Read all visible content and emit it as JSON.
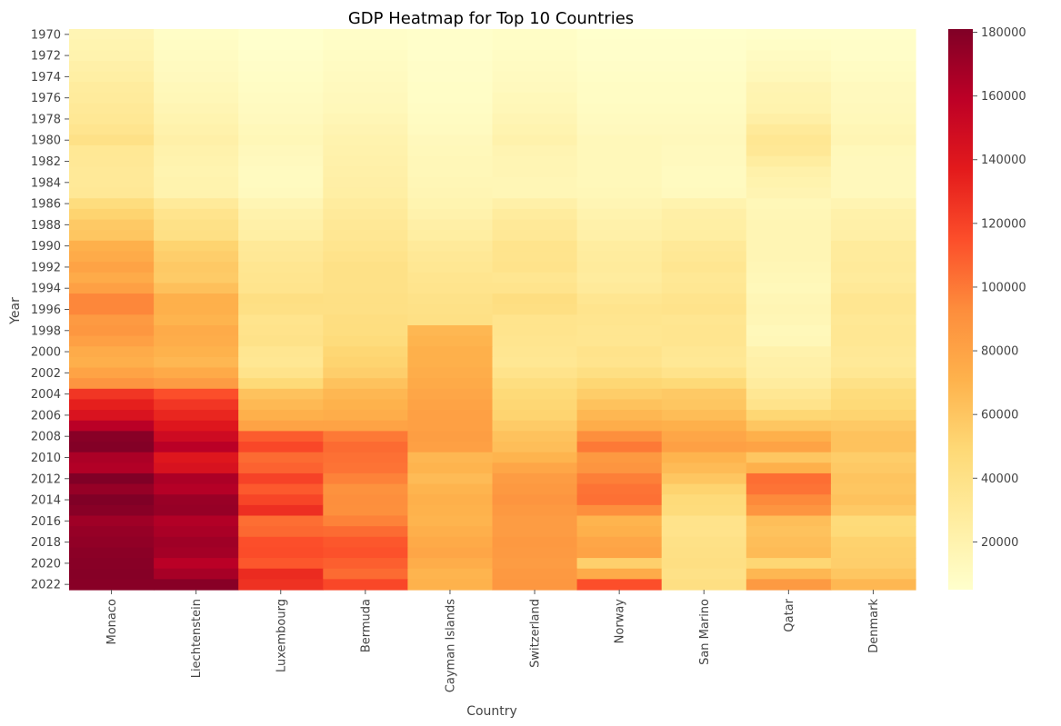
{
  "chart_data": {
    "type": "heatmap",
    "title": "GDP Heatmap for Top 10 Countries",
    "xlabel": "Country",
    "ylabel": "Year",
    "x": [
      "Monaco",
      "Liechtenstein",
      "Luxembourg",
      "Bermuda",
      "Cayman Islands",
      "Switzerland",
      "Norway",
      "San Marino",
      "Qatar",
      "Denmark"
    ],
    "y": [
      1970,
      1971,
      1972,
      1973,
      1974,
      1975,
      1976,
      1977,
      1978,
      1979,
      1980,
      1981,
      1982,
      1983,
      1984,
      1985,
      1986,
      1987,
      1988,
      1989,
      1990,
      1991,
      1992,
      1993,
      1994,
      1995,
      1996,
      1997,
      1998,
      1999,
      2000,
      2001,
      2002,
      2003,
      2004,
      2005,
      2006,
      2007,
      2008,
      2009,
      2010,
      2011,
      2012,
      2013,
      2014,
      2015,
      2016,
      2017,
      2018,
      2019,
      2020,
      2021,
      2022
    ],
    "y_tick_labels": [
      "1970",
      "1972",
      "1974",
      "1976",
      "1978",
      "1980",
      "1982",
      "1984",
      "1986",
      "1988",
      "1990",
      "1992",
      "1994",
      "1996",
      "1998",
      "2000",
      "2002",
      "2004",
      "2006",
      "2008",
      "2010",
      "2012",
      "2014",
      "2016",
      "2018",
      "2020",
      "2022"
    ],
    "values": [
      [
        17000,
        8000,
        5000,
        7000,
        6000,
        8000,
        5000,
        5000,
        6000,
        6000
      ],
      [
        19000,
        9000,
        5000,
        8000,
        6000,
        8000,
        6000,
        6000,
        8000,
        7000
      ],
      [
        20000,
        10000,
        6000,
        9000,
        6000,
        9000,
        6000,
        6000,
        10000,
        7000
      ],
      [
        23000,
        11000,
        7000,
        10000,
        7000,
        10000,
        7000,
        7000,
        12000,
        9000
      ],
      [
        25000,
        12000,
        8000,
        11000,
        7000,
        11000,
        8000,
        8000,
        14000,
        10000
      ],
      [
        28000,
        14000,
        9000,
        12000,
        8000,
        12000,
        9000,
        9000,
        18000,
        12000
      ],
      [
        29000,
        15000,
        10000,
        13000,
        8000,
        14000,
        9000,
        9000,
        19000,
        12000
      ],
      [
        31000,
        17000,
        11000,
        14000,
        9000,
        15000,
        10000,
        10000,
        20000,
        13000
      ],
      [
        33000,
        19000,
        12000,
        16000,
        10000,
        17000,
        11000,
        11000,
        24000,
        14000
      ],
      [
        36000,
        21000,
        14000,
        18000,
        11000,
        19000,
        12000,
        12000,
        30000,
        16000
      ],
      [
        40000,
        23000,
        15000,
        20000,
        13000,
        21000,
        14000,
        13000,
        34000,
        17000
      ],
      [
        33000,
        21000,
        13000,
        21000,
        14000,
        18000,
        14000,
        12000,
        32000,
        14000
      ],
      [
        32000,
        20000,
        12000,
        22000,
        15000,
        17000,
        14000,
        12000,
        27000,
        13000
      ],
      [
        31000,
        19000,
        11000,
        23000,
        15000,
        17000,
        14000,
        11000,
        22000,
        13000
      ],
      [
        31000,
        20000,
        11000,
        24000,
        16000,
        16000,
        14000,
        11000,
        20000,
        13000
      ],
      [
        32000,
        20000,
        12000,
        25000,
        17000,
        16000,
        15000,
        12000,
        18000,
        13000
      ],
      [
        45000,
        30000,
        17000,
        28000,
        19000,
        23000,
        17000,
        20000,
        15000,
        18000
      ],
      [
        52000,
        37000,
        21000,
        30000,
        21000,
        28000,
        20000,
        24000,
        16000,
        22000
      ],
      [
        58000,
        40000,
        23000,
        32000,
        24000,
        31000,
        22000,
        25000,
        17000,
        23000
      ],
      [
        60000,
        41000,
        25000,
        34000,
        26000,
        32000,
        23000,
        26000,
        17000,
        24000
      ],
      [
        72000,
        52000,
        31000,
        36000,
        30000,
        37000,
        27000,
        31000,
        17000,
        29000
      ],
      [
        75000,
        55000,
        32000,
        38000,
        32000,
        37000,
        28000,
        33000,
        17000,
        29000
      ],
      [
        80000,
        58000,
        35000,
        40000,
        34000,
        38000,
        29000,
        35000,
        16000,
        30000
      ],
      [
        75000,
        57000,
        36000,
        40000,
        36000,
        35000,
        28000,
        33000,
        15000,
        29000
      ],
      [
        82000,
        63000,
        37000,
        40000,
        37000,
        37000,
        30000,
        34000,
        14000,
        31000
      ],
      [
        95000,
        72000,
        42000,
        41000,
        39000,
        43000,
        35000,
        37000,
        16000,
        35000
      ],
      [
        95000,
        72000,
        41000,
        41000,
        40000,
        42000,
        37000,
        38000,
        17000,
        35000
      ],
      [
        85000,
        70000,
        37000,
        43000,
        41000,
        37000,
        36000,
        35000,
        16000,
        33000
      ],
      [
        87000,
        75000,
        38000,
        44000,
        68000,
        37000,
        35000,
        36000,
        14000,
        34000
      ],
      [
        82000,
        74000,
        39000,
        46000,
        70000,
        36000,
        35000,
        36000,
        15000,
        34000
      ],
      [
        75000,
        71000,
        35000,
        50000,
        72000,
        35000,
        38000,
        34000,
        21000,
        32000
      ],
      [
        73000,
        68000,
        34000,
        52000,
        72000,
        34000,
        37000,
        33000,
        23000,
        31000
      ],
      [
        80000,
        76000,
        38000,
        55000,
        74000,
        38000,
        42000,
        38000,
        24000,
        34000
      ],
      [
        88000,
        84000,
        48000,
        62000,
        76000,
        44000,
        50000,
        48000,
        28000,
        40000
      ],
      [
        125000,
        115000,
        62000,
        68000,
        78000,
        48000,
        56000,
        58000,
        34000,
        46000
      ],
      [
        135000,
        125000,
        67000,
        71000,
        80000,
        50000,
        62000,
        60000,
        38000,
        48000
      ],
      [
        143000,
        132000,
        72000,
        74000,
        82000,
        52000,
        68000,
        65000,
        50000,
        52000
      ],
      [
        160000,
        140000,
        80000,
        80000,
        82000,
        57000,
        74000,
        72000,
        60000,
        58000
      ],
      [
        178000,
        150000,
        110000,
        100000,
        83000,
        62000,
        92000,
        78000,
        72000,
        62000
      ],
      [
        180000,
        160000,
        118000,
        105000,
        82000,
        64000,
        100000,
        82000,
        80000,
        62000
      ],
      [
        165000,
        140000,
        105000,
        103000,
        68000,
        70000,
        86000,
        70000,
        60000,
        56000
      ],
      [
        163000,
        144000,
        108000,
        102000,
        70000,
        78000,
        88000,
        66000,
        72000,
        58000
      ],
      [
        181000,
        165000,
        120000,
        97000,
        66000,
        84000,
        98000,
        60000,
        104000,
        61000
      ],
      [
        173000,
        162000,
        111000,
        90000,
        70000,
        86000,
        102000,
        52000,
        102000,
        60000
      ],
      [
        181000,
        172000,
        119000,
        92000,
        72000,
        88000,
        103000,
        47000,
        94000,
        62000
      ],
      [
        178000,
        173000,
        128000,
        91000,
        71000,
        86000,
        92000,
        46000,
        88000,
        58000
      ],
      [
        170000,
        163000,
        104000,
        97000,
        70000,
        84000,
        70000,
        38000,
        64000,
        47000
      ],
      [
        173000,
        166000,
        106000,
        105000,
        73000,
        84000,
        72000,
        38000,
        62000,
        48000
      ],
      [
        175000,
        170000,
        115000,
        112000,
        76000,
        86000,
        78000,
        40000,
        64000,
        53000
      ],
      [
        177000,
        168000,
        116000,
        114000,
        78000,
        85000,
        80000,
        41000,
        66000,
        54000
      ],
      [
        178000,
        160000,
        112000,
        109000,
        74000,
        84000,
        54000,
        42000,
        50000,
        55000
      ],
      [
        179000,
        167000,
        130000,
        105000,
        70000,
        86000,
        75000,
        40000,
        68000,
        60000
      ],
      [
        178000,
        178000,
        127000,
        118000,
        71000,
        87000,
        115000,
        42000,
        85000,
        68000
      ]
    ],
    "vmin": 5000,
    "vmax": 181000,
    "colorbar_ticks": [
      20000,
      40000,
      60000,
      80000,
      100000,
      120000,
      140000,
      160000,
      180000
    ],
    "colorbar_tick_labels": [
      "20000",
      "40000",
      "60000",
      "80000",
      "100000",
      "120000",
      "140000",
      "160000",
      "180000"
    ],
    "colormap": [
      "#ffffcc",
      "#ffeda0",
      "#fed976",
      "#feb24c",
      "#fd8d3c",
      "#fc4e2a",
      "#e31a1c",
      "#bd0026",
      "#800026"
    ],
    "grid": false
  }
}
